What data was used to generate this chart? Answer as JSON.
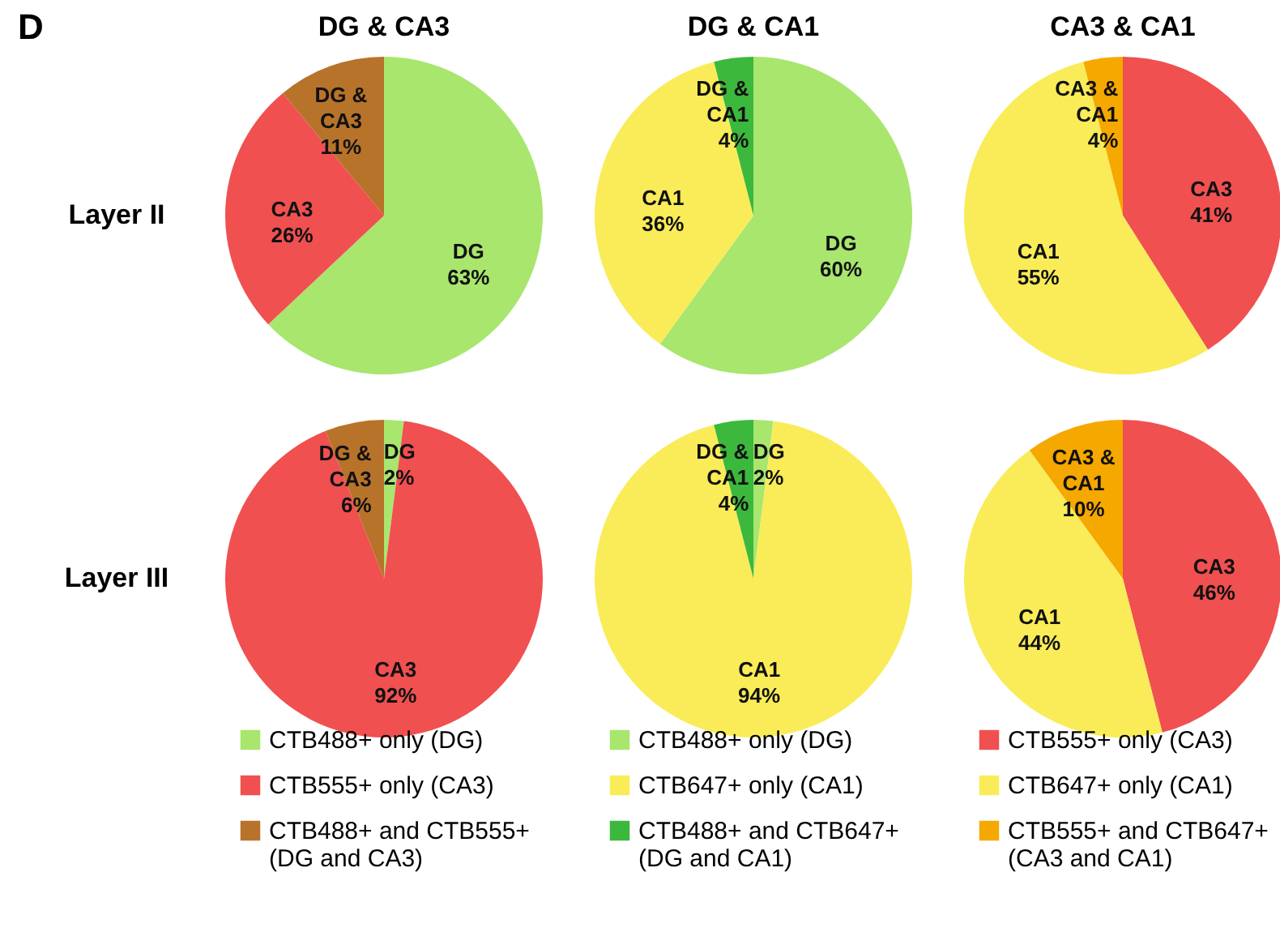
{
  "chart_data": [
    {
      "type": "pie",
      "title": "DG & CA3",
      "categories": [
        null,
        null,
        null
      ],
      "values": [
        63,
        26,
        11
      ],
      "colors": [
        "#a8e66e",
        "#f05050",
        "#b8732a"
      ],
      "value_labels": [
        "DG\n63%",
        "CA3\n26%",
        "DG &\nCA3\n11%"
      ],
      "annotations": [
        "D",
        "Layer II"
      ]
    },
    {
      "type": "pie",
      "title": "DG & CA1",
      "categories": [
        null,
        null,
        null
      ],
      "values": [
        60,
        36,
        4
      ],
      "colors": [
        "#a8e66e",
        "#f9ec58",
        "#3cb83c"
      ],
      "value_labels": [
        "DG\n60%",
        "CA1\n36%",
        "DG &\nCA1\n4%"
      ]
    },
    {
      "type": "pie",
      "title": "CA3 & CA1",
      "categories": [
        null,
        null,
        null
      ],
      "values": [
        41,
        55,
        4
      ],
      "colors": [
        "#f05050",
        "#f9ec58",
        "#f5a800"
      ],
      "value_labels": [
        "CA3\n41%",
        "CA1\n55%",
        "CA3 &\nCA1\n4%"
      ]
    },
    {
      "type": "pie",
      "categories": [
        "CTB488+ only (DG)",
        "CTB555+ only (CA3)",
        "CTB488+ and CTB555+\n(DG and CA3)"
      ],
      "values": [
        2,
        92,
        6
      ],
      "colors": [
        "#a8e66e",
        "#f05050",
        "#b8732a"
      ],
      "value_labels": [
        "DG\n2%",
        "CA3\n92%",
        "DG &\nCA3\n6%"
      ],
      "annotations": [
        "Layer III"
      ],
      "legend": "bottom"
    },
    {
      "type": "pie",
      "categories": [
        "CTB488+ only (DG)",
        "CTB647+ only (CA1)",
        "CTB488+ and CTB647+\n(DG and CA1)"
      ],
      "values": [
        2,
        94,
        4
      ],
      "colors": [
        "#a8e66e",
        "#f9ec58",
        "#3cb83c"
      ],
      "value_labels": [
        "DG\n2%",
        "CA1\n94%",
        "DG &\nCA1\n4%"
      ],
      "legend": "bottom"
    },
    {
      "type": "pie",
      "categories": [
        "CTB555+ only (CA3)",
        "CTB647+ only (CA1)",
        "CTB555+ and CTB647+\n(CA3 and CA1)"
      ],
      "values": [
        46,
        44,
        10
      ],
      "colors": [
        "#f05050",
        "#f9ec58",
        "#f5a800"
      ],
      "value_labels": [
        "CA3\n46%",
        "CA1\n44%",
        "CA3 &\nCA1\n10%"
      ],
      "legend": "bottom"
    }
  ]
}
